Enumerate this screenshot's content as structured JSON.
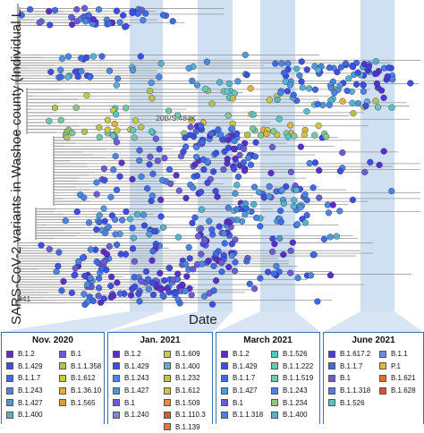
{
  "axis": {
    "y_label": "SARS-CoV-2 variants in Washoe county (Individual L",
    "x_label": "Date"
  },
  "annotations": {
    "clade": "20B/S.484K",
    "cut_label": "941"
  },
  "colors": {
    "B.1.2": "#5b2ec6",
    "B.1.429": "#3d4fe0",
    "B.1.1.7": "#3f6ae6",
    "B.1.243": "#4a86e0",
    "B.1.427": "#4f9ad6",
    "B.1.400": "#57b3c8",
    "B.1.1.358": "#b8c24a",
    "B.1.612": "#c9c840",
    "B.1.36.10": "#e0b23a",
    "B.1.565": "#e39a3a",
    "B.1.609": "#c6cd48",
    "B.1.232": "#bfc64c",
    "B.1.1.509": "#e48a38",
    "B.1.1.110.3": "#d45a34",
    "B.1.139": "#dd7a36",
    "B.1.526": "#54c6c0",
    "B.1.1.222": "#68c8b0",
    "B.1.1.519": "#78c89e",
    "B.1.234": "#8cc884",
    "B.1.1.318": "#4e7fe4",
    "B.1.617.2": "#4a3ad6",
    "P.1": "#e8b33a",
    "B.1.621": "#e07030",
    "B.1.628": "#d8542e",
    "branch": "#a5a5a5",
    "band": "#c6daf0",
    "panel_border": "#3a6fb0"
  },
  "panels": [
    {
      "title": "Nov. 2020",
      "columns": [
        [
          {
            "label": "B.1.2",
            "color": "#5b2ec6"
          },
          {
            "label": "B.1.429",
            "color": "#3d4fe0"
          },
          {
            "label": "B.1.1.7",
            "color": "#3f6ae6"
          },
          {
            "label": "B.1.243",
            "color": "#4a86e0"
          },
          {
            "label": "B.1.427",
            "color": "#4f9ad6"
          },
          {
            "label": "B.1.400",
            "color": "#57b3c8"
          }
        ],
        [
          {
            "label": "B.1",
            "color": "#6b5cd0"
          },
          {
            "label": "B.1.1.358",
            "color": "#b8c24a"
          },
          {
            "label": "B.1.612",
            "color": "#c9c840"
          },
          {
            "label": "B.1.36.10",
            "color": "#e0b23a"
          },
          {
            "label": "B.1.565",
            "color": "#e39a3a"
          }
        ]
      ]
    },
    {
      "title": "Jan. 2021",
      "columns": [
        [
          {
            "label": "B.1.2",
            "color": "#5b2ec6"
          },
          {
            "label": "B.1.429",
            "color": "#3d4fe0"
          },
          {
            "label": "B.1.243",
            "color": "#4a86e0"
          },
          {
            "label": "B.1.427",
            "color": "#4f9ad6"
          },
          {
            "label": "B.1",
            "color": "#6b5cd0"
          },
          {
            "label": "B.1.240",
            "color": "#7a86d8"
          }
        ],
        [
          {
            "label": "B.1.609",
            "color": "#c6cd48"
          },
          {
            "label": "B.1.400",
            "color": "#57b3c8"
          },
          {
            "label": "B.1.232",
            "color": "#bfc64c"
          },
          {
            "label": "B.1.612",
            "color": "#c9c840"
          },
          {
            "label": "B.1.509",
            "color": "#e48a38"
          },
          {
            "label": "B.1.110.3",
            "color": "#d45a34"
          },
          {
            "label": "B.1.139",
            "color": "#dd7a36"
          }
        ]
      ]
    },
    {
      "title": "March 2021",
      "columns": [
        [
          {
            "label": "B.1.2",
            "color": "#5b2ec6"
          },
          {
            "label": "B.1.429",
            "color": "#3d4fe0"
          },
          {
            "label": "B.1.1.7",
            "color": "#3f6ae6"
          },
          {
            "label": "B.1.427",
            "color": "#4f9ad6"
          },
          {
            "label": "B.1",
            "color": "#6b5cd0"
          },
          {
            "label": "B.1.1.318",
            "color": "#4e7fe4"
          }
        ],
        [
          {
            "label": "B.1.526",
            "color": "#54c6c0"
          },
          {
            "label": "B.1.1.222",
            "color": "#68c8b0"
          },
          {
            "label": "B.1.1.519",
            "color": "#78c89e"
          },
          {
            "label": "B.1.243",
            "color": "#4a86e0"
          },
          {
            "label": "B.1.234",
            "color": "#8cc884"
          },
          {
            "label": "B.1.400",
            "color": "#57b3c8"
          }
        ]
      ]
    },
    {
      "title": "June 2021",
      "columns": [
        [
          {
            "label": "B.1.617.2",
            "color": "#4a3ad6"
          },
          {
            "label": "B.1.1.7",
            "color": "#3f6ae6"
          },
          {
            "label": "B.1",
            "color": "#6b5cd0"
          },
          {
            "label": "B.1.1.318",
            "color": "#4e7fe4"
          },
          {
            "label": "B.1.526",
            "color": "#54c6c0"
          }
        ],
        [
          {
            "label": "B.1.1",
            "color": "#6a8ad8"
          },
          {
            "label": "P.1",
            "color": "#e8b33a"
          },
          {
            "label": "B.1.621",
            "color": "#e07030"
          },
          {
            "label": "B.1.628",
            "color": "#d8542e"
          }
        ]
      ]
    }
  ]
}
